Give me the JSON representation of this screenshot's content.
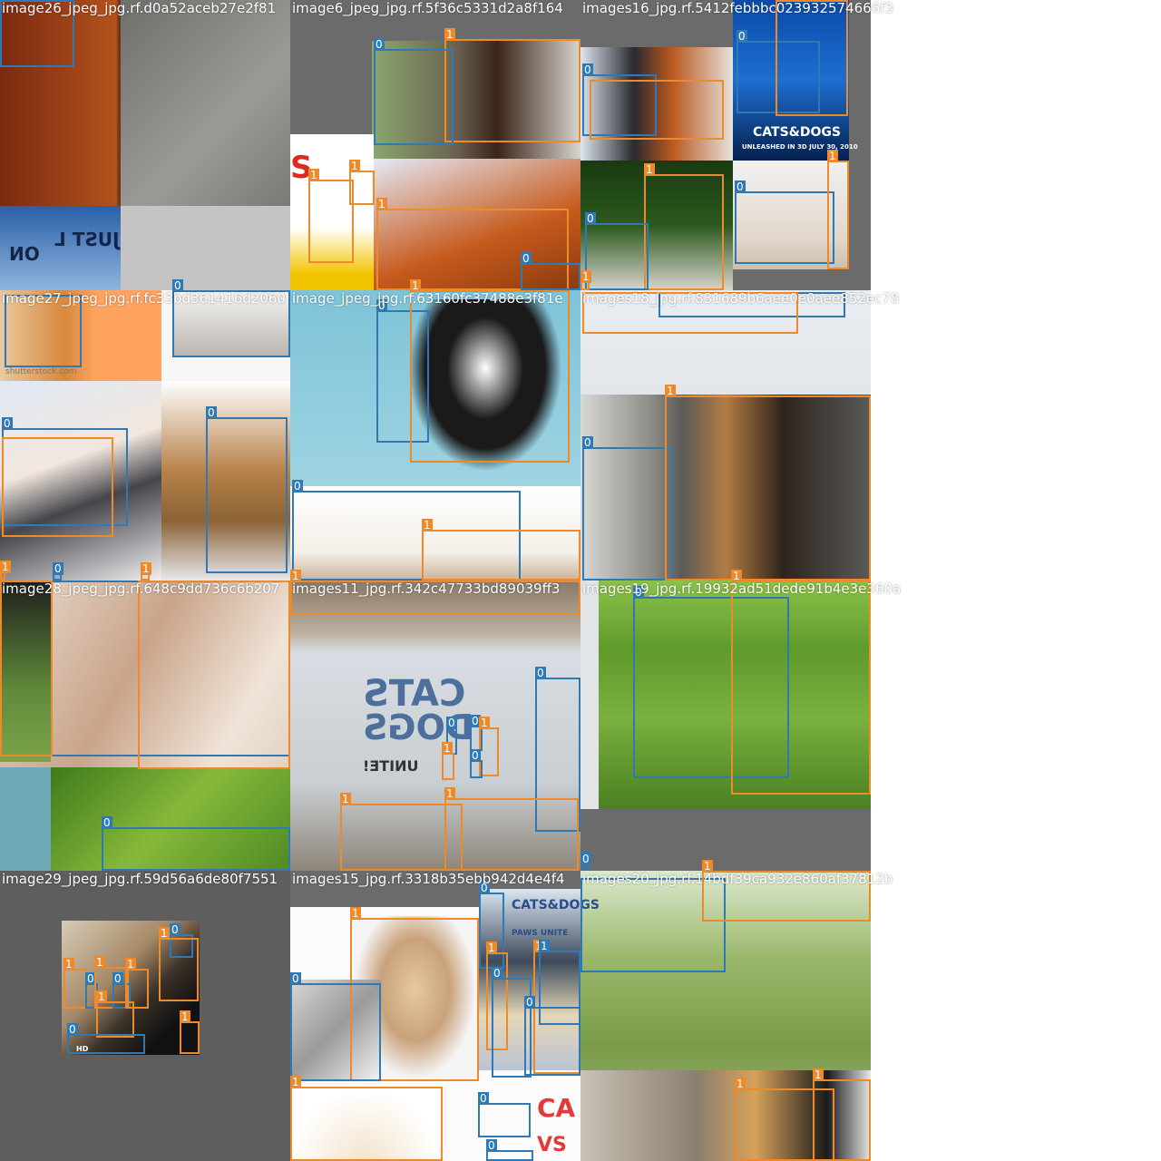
{
  "tiles": [
    {
      "title": "image26_jpeg_jpg.rf.d0a52aceb27e2f81"
    },
    {
      "title": "image6_jpeg_jpg.rf.5f36c5331d2a8f164"
    },
    {
      "title": "images16_jpg.rf.5412febbbc023932574666f3"
    },
    {
      "title": "image27_jpeg_jpg.rf.fc33bd361416d2060"
    },
    {
      "title": "image_jpeg_jpg.rf.63160fc37488e3f81e"
    },
    {
      "title": "images18_jpg.rf.831689b6aee0e0aee852ec78"
    },
    {
      "title": "image28_jpeg_jpg.rf.648c9dd736c6b207"
    },
    {
      "title": "images11_jpg.rf.342c47733bd89039ff3"
    },
    {
      "title": "images19_jpg.rf.19932ad51dede91b4e3e360a"
    },
    {
      "title": "image29_jpeg_jpg.rf.59d56a6de80f7551"
    },
    {
      "title": "images15_jpg.rf.3318b35ebb942d4e4f4"
    },
    {
      "title": "images20_jpg.rf.14bdf39ca932e860af37812b"
    }
  ],
  "labels": {
    "cat": "0",
    "dog": "1"
  },
  "poster_text": {
    "cats_dogs": "CATS&DOGS",
    "unleashed": "UNLEASHED IN 3D JULY 30, 2010",
    "just": "JUST L",
    "on": "ON",
    "shutterstock": "shutterstock.com",
    "cats_big": "CATS",
    "dogs_big": "DOGS",
    "unite": "UNITE!",
    "paws_unite": "PAWS UNITE",
    "hd": "HD",
    "ca_vs": "CA",
    "vs": "VS",
    "dog_s": "S"
  },
  "colors": {
    "class0": "#2f79b5",
    "class1": "#ef8a2a",
    "padding_gray": "#5a5a5a"
  }
}
